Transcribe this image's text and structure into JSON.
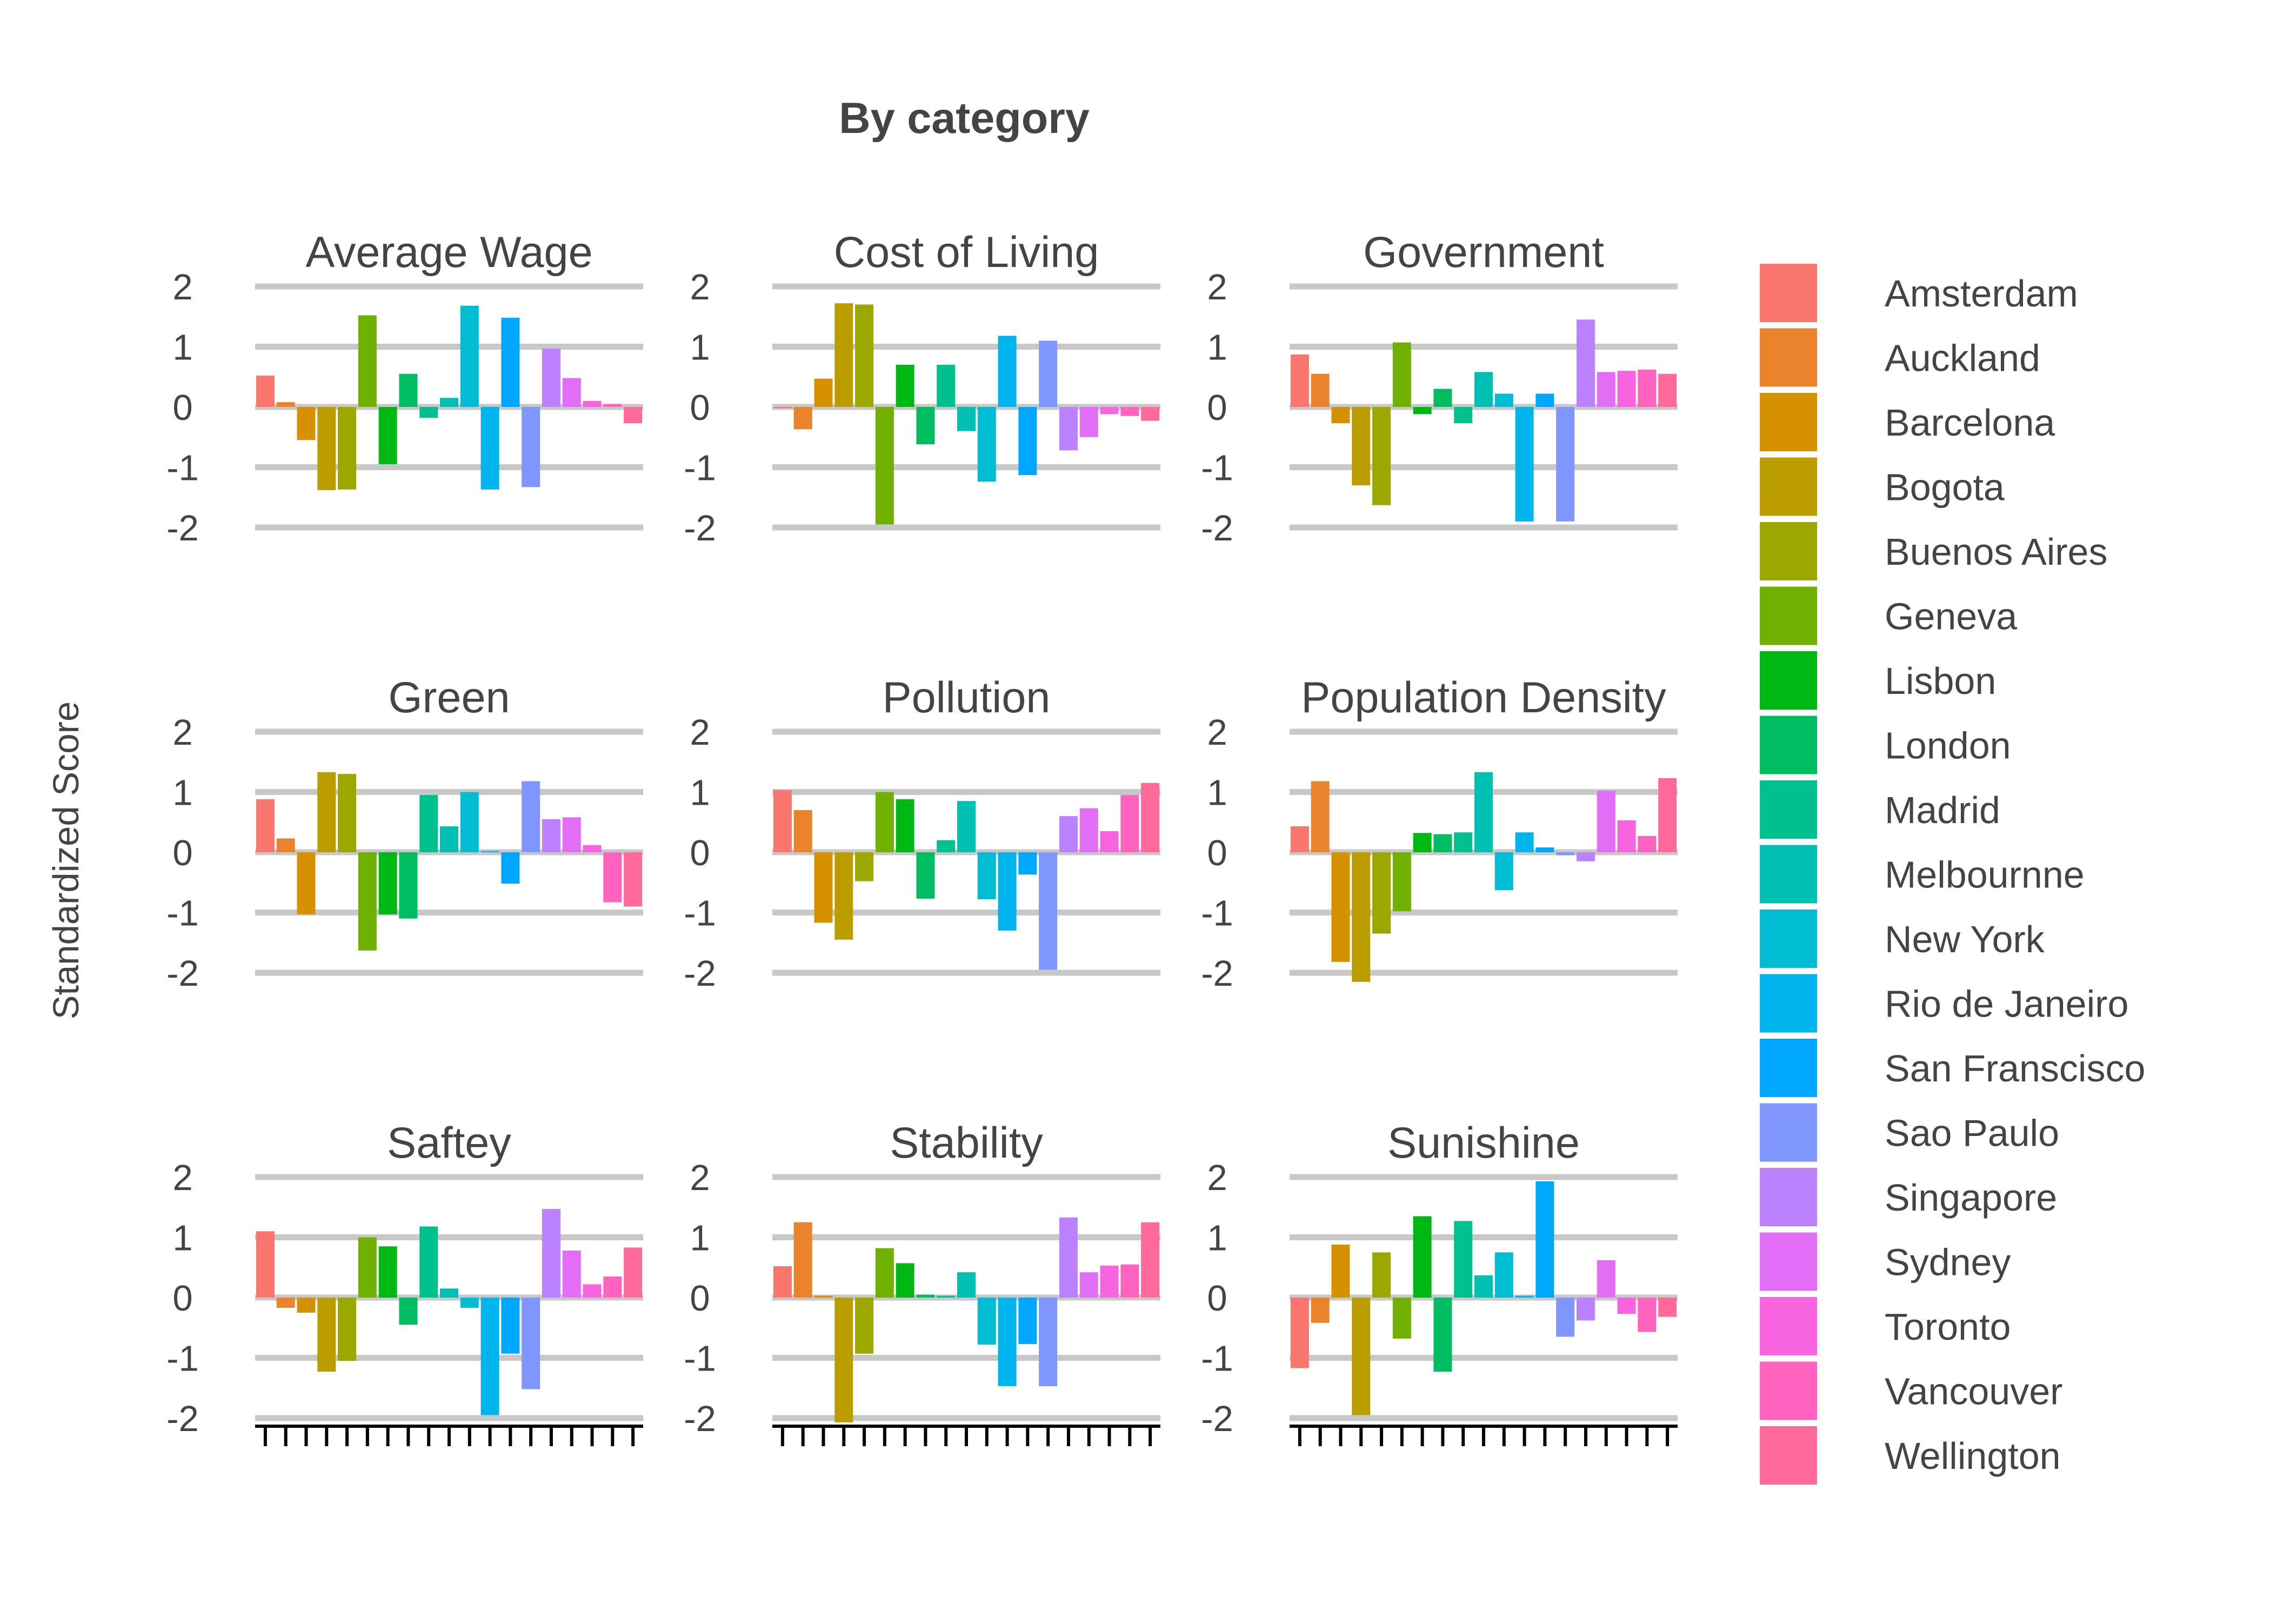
{
  "chart_data": {
    "type": "bar",
    "title": "By category",
    "ylabel": "Standardized Score",
    "xlabel": "",
    "ylim": [
      -2,
      2
    ],
    "yticks": [
      2,
      1,
      0,
      -1,
      -2
    ],
    "ytick_labels": [
      "2",
      "1",
      "0",
      "-1",
      "-2"
    ],
    "grid": true,
    "legend_position": "right",
    "cities": [
      "Amsterdam",
      "Auckland",
      "Barcelona",
      "Bogota",
      "Buenos Aires",
      "Geneva",
      "Lisbon",
      "London",
      "Madrid",
      "Melbournne",
      "New York",
      "Rio de Janeiro",
      "San Franscisco",
      "Sao Paulo",
      "Singapore",
      "Sydney",
      "Toronto",
      "Vancouver",
      "Wellington"
    ],
    "colors": [
      "#F8766D",
      "#E9842C",
      "#D69100",
      "#BC9D00",
      "#9CA700",
      "#6FB000",
      "#00B813",
      "#00BD61",
      "#00C08E",
      "#00C0B4",
      "#00BDD4",
      "#00B5EE",
      "#00A7FF",
      "#7F96FF",
      "#BC81FF",
      "#E26EF7",
      "#F863DF",
      "#FF62BF",
      "#FF6A9A"
    ],
    "panels": [
      {
        "name": "Average Wage",
        "values": [
          0.52,
          0.08,
          -0.55,
          -1.38,
          -1.37,
          1.52,
          -0.95,
          0.55,
          -0.18,
          0.15,
          1.68,
          -1.37,
          1.48,
          -1.33,
          0.97,
          0.48,
          0.1,
          0.05,
          -0.27
        ]
      },
      {
        "name": "Cost of Living",
        "values": [
          -0.02,
          -0.37,
          0.47,
          1.72,
          1.7,
          -1.95,
          0.7,
          -0.62,
          0.7,
          -0.4,
          -1.24,
          1.18,
          -1.13,
          1.1,
          -0.72,
          -0.5,
          -0.12,
          -0.15,
          -0.23
        ]
      },
      {
        "name": "Government",
        "values": [
          0.87,
          0.55,
          -0.27,
          -1.3,
          -1.63,
          1.07,
          -0.12,
          0.3,
          -0.27,
          0.58,
          0.22,
          -1.9,
          0.22,
          -1.9,
          1.45,
          0.58,
          0.6,
          0.62,
          0.55
        ]
      },
      {
        "name": "Green",
        "values": [
          0.88,
          0.23,
          -1.03,
          1.33,
          1.3,
          -1.63,
          -1.03,
          -1.1,
          0.95,
          0.43,
          1.0,
          0.02,
          -0.52,
          1.18,
          0.55,
          0.58,
          0.12,
          -0.83,
          -0.9
        ]
      },
      {
        "name": "Pollution",
        "values": [
          1.03,
          0.7,
          -1.17,
          -1.45,
          -0.48,
          1.0,
          0.88,
          -0.77,
          0.2,
          0.85,
          -0.78,
          -1.3,
          -0.37,
          -1.95,
          0.6,
          0.73,
          0.35,
          0.95,
          1.15
        ]
      },
      {
        "name": "Population Density",
        "values": [
          0.43,
          1.18,
          -1.82,
          -2.15,
          -1.35,
          -0.98,
          0.32,
          0.3,
          0.33,
          1.33,
          -0.63,
          0.33,
          0.08,
          -0.05,
          -0.15,
          1.02,
          0.53,
          0.27,
          1.23
        ]
      },
      {
        "name": "Saftey",
        "values": [
          1.1,
          -0.17,
          -0.25,
          -1.23,
          -1.05,
          1.0,
          0.85,
          -0.45,
          1.18,
          0.15,
          -0.17,
          -1.95,
          -0.93,
          -1.52,
          1.47,
          0.78,
          0.22,
          0.35,
          0.83
        ]
      },
      {
        "name": "Stability",
        "values": [
          0.52,
          1.25,
          0.03,
          -2.07,
          -0.93,
          0.82,
          0.57,
          0.05,
          0.03,
          0.42,
          -0.78,
          -1.47,
          -0.77,
          -1.47,
          1.33,
          0.42,
          0.53,
          0.55,
          1.25
        ]
      },
      {
        "name": "Sunishine",
        "values": [
          -1.17,
          -0.42,
          0.88,
          -1.95,
          0.75,
          -0.68,
          1.35,
          -1.23,
          1.27,
          0.37,
          0.75,
          0.03,
          1.93,
          -0.65,
          -0.38,
          0.62,
          -0.27,
          -0.57,
          -0.32
        ]
      }
    ]
  }
}
